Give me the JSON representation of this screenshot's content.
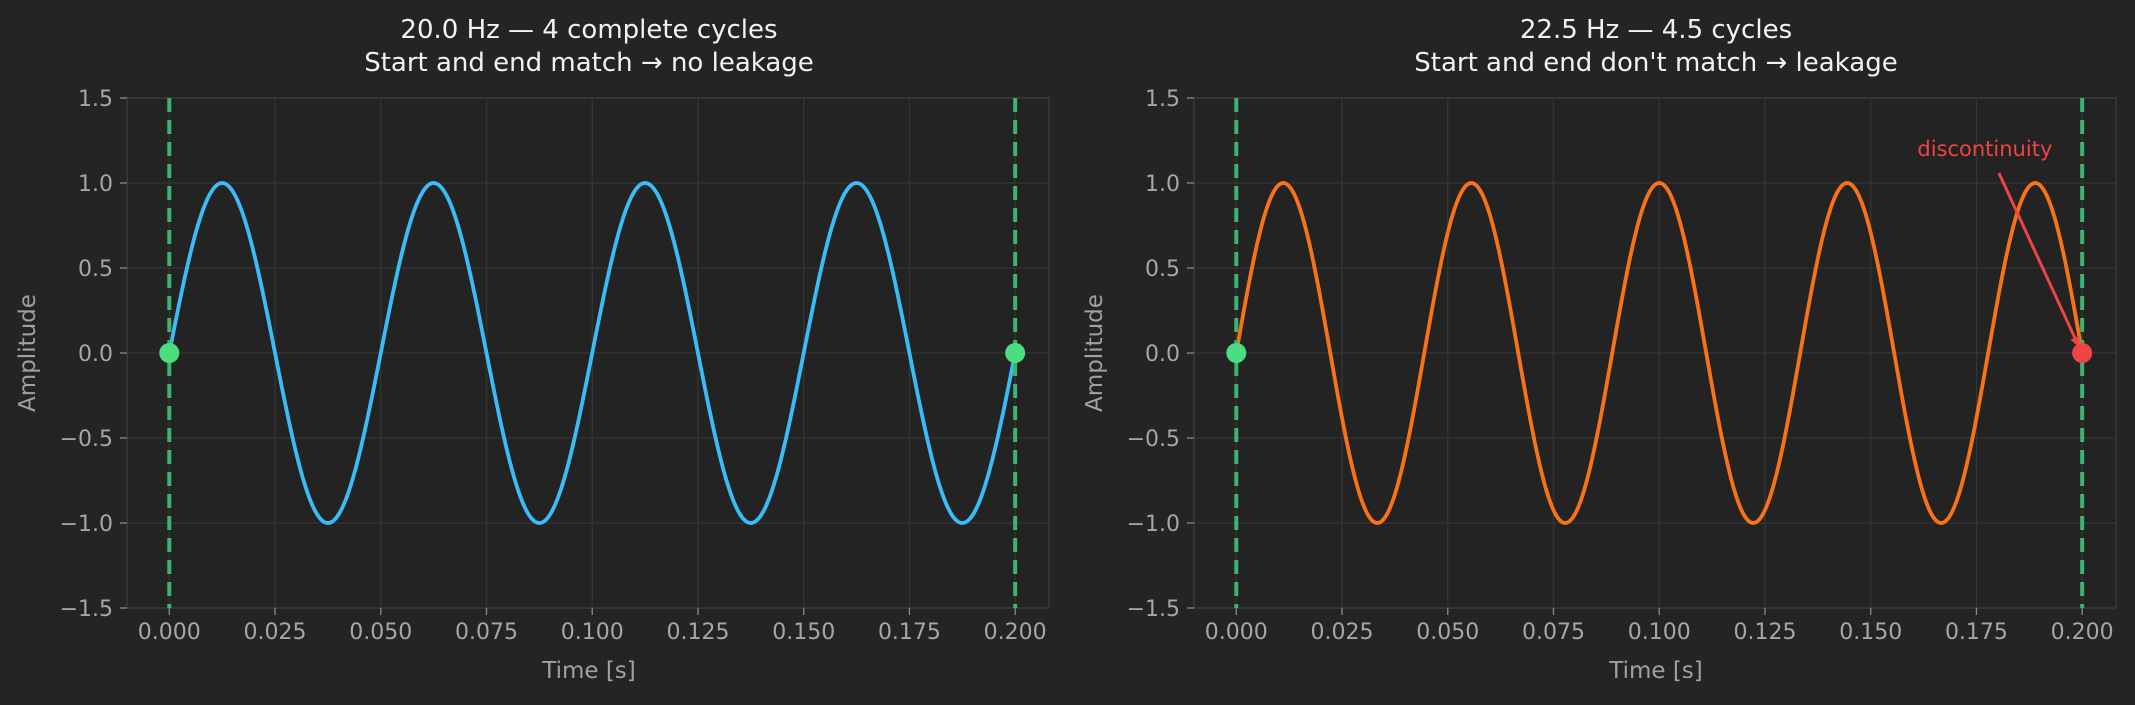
{
  "colors": {
    "background": "#242424",
    "plot_background": "#232323",
    "grid": "#353535",
    "spine": "#3c3c3c",
    "tick_text": "#a6a6a6",
    "title_text": "#f2f2f2",
    "boundary_line": "#3cb371",
    "start_end_marker": "#4ade80",
    "discontinuity": "#ef4444"
  },
  "chart_data": [
    {
      "type": "line",
      "title_lines": [
        "20.0 Hz — 4 complete cycles",
        "Start and end match → no leakage"
      ],
      "xlabel": "Time [s]",
      "ylabel": "Amplitude",
      "xlim": [
        -0.01,
        0.208
      ],
      "ylim": [
        -1.5,
        1.5
      ],
      "x_ticks": [
        0.0,
        0.025,
        0.05,
        0.075,
        0.1,
        0.125,
        0.15,
        0.175,
        0.2
      ],
      "x_tick_labels": [
        "0.000",
        "0.025",
        "0.050",
        "0.075",
        "0.100",
        "0.125",
        "0.150",
        "0.175",
        "0.200"
      ],
      "y_ticks": [
        -1.5,
        -1.0,
        -0.5,
        0.0,
        0.5,
        1.0,
        1.5
      ],
      "y_tick_labels": [
        "−1.5",
        "−1.0",
        "−0.5",
        "0.0",
        "0.5",
        "1.0",
        "1.5"
      ],
      "grid": true,
      "series": [
        {
          "function": "sine",
          "frequency_hz": 20.0,
          "amplitude": 1.0,
          "t_start": 0.0,
          "t_end": 0.2,
          "color": "#38bdf8"
        }
      ],
      "vertical_lines": [
        {
          "x": 0.0,
          "style": "dashed",
          "color": "#3cb371"
        },
        {
          "x": 0.2,
          "style": "dashed",
          "color": "#3cb371"
        }
      ],
      "markers": [
        {
          "x": 0.0,
          "y": 0.0,
          "color": "#4ade80"
        },
        {
          "x": 0.2,
          "y": 0.0,
          "color": "#4ade80"
        }
      ],
      "annotations": []
    },
    {
      "type": "line",
      "title_lines": [
        "22.5 Hz — 4.5 cycles",
        "Start and end don't match → leakage"
      ],
      "xlabel": "Time [s]",
      "ylabel": "Amplitude",
      "xlim": [
        -0.01,
        0.208
      ],
      "ylim": [
        -1.5,
        1.5
      ],
      "x_ticks": [
        0.0,
        0.025,
        0.05,
        0.075,
        0.1,
        0.125,
        0.15,
        0.175,
        0.2
      ],
      "x_tick_labels": [
        "0.000",
        "0.025",
        "0.050",
        "0.075",
        "0.100",
        "0.125",
        "0.150",
        "0.175",
        "0.200"
      ],
      "y_ticks": [
        -1.5,
        -1.0,
        -0.5,
        0.0,
        0.5,
        1.0,
        1.5
      ],
      "y_tick_labels": [
        "−1.5",
        "−1.0",
        "−0.5",
        "0.0",
        "0.5",
        "1.0",
        "1.5"
      ],
      "grid": true,
      "series": [
        {
          "function": "sine",
          "frequency_hz": 22.5,
          "amplitude": 1.0,
          "t_start": 0.0,
          "t_end": 0.2,
          "color": "#f97316"
        }
      ],
      "vertical_lines": [
        {
          "x": 0.0,
          "style": "dashed",
          "color": "#3cb371"
        },
        {
          "x": 0.2,
          "style": "dashed",
          "color": "#3cb371"
        }
      ],
      "markers": [
        {
          "x": 0.0,
          "y": 0.0,
          "color": "#4ade80"
        },
        {
          "x": 0.2,
          "y": 0.0,
          "color": "#ef4444"
        }
      ],
      "annotations": [
        {
          "text": "discontinuity",
          "text_x": 0.177,
          "text_y": 1.2,
          "arrow_to_x": 0.2,
          "arrow_to_y": 0.0,
          "color": "#ef4444"
        }
      ]
    }
  ]
}
